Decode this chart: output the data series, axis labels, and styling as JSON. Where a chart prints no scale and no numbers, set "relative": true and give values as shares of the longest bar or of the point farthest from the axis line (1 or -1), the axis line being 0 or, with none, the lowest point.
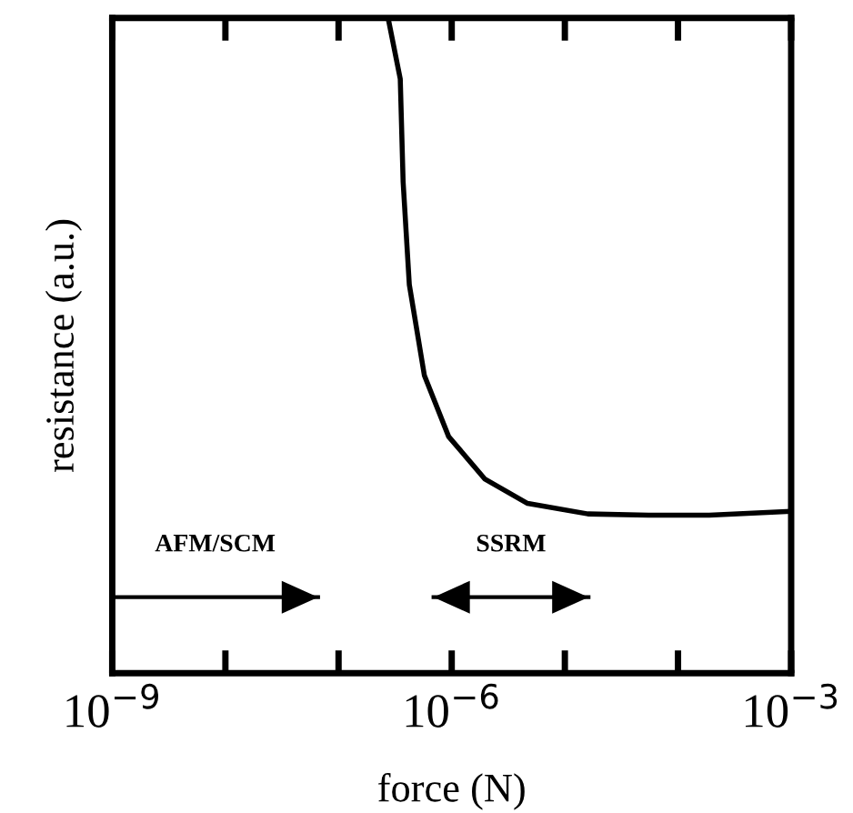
{
  "chart_data": {
    "type": "line",
    "relative": true,
    "xlabel": "force (N)",
    "ylabel": "resistance (a.u.)",
    "log": "x",
    "xlim": [
      1e-09,
      0.001
    ],
    "xticks": [
      {
        "value": 1e-09,
        "label": "10$^{−9}$"
      },
      {
        "value": 1e-08,
        "label": null
      },
      {
        "value": 1e-07,
        "label": null
      },
      {
        "value": 1e-06,
        "label": "10$^{−6}$"
      },
      {
        "value": 1e-05,
        "label": null
      },
      {
        "value": 0.0001,
        "label": null
      },
      {
        "value": 0.001,
        "label": "10$^{−3}$"
      }
    ],
    "tick_labels": "x",
    "grid": false,
    "legend": false,
    "marker": "none",
    "line_style": "solid",
    "series": [
      {
        "color": "#000000",
        "x": [
          2.74e-07,
          3.51e-07,
          3.72e-07,
          4.22e-07,
          5.74e-07,
          9.4e-07,
          1.97e-06,
          4.68e-06,
          1.6e-05,
          5.5e-05,
          0.000189,
          0.001
        ],
        "values": [
          1.0,
          0.907,
          0.75,
          0.593,
          0.454,
          0.361,
          0.296,
          0.259,
          0.243,
          0.241,
          0.241,
          0.247
        ]
      },
      {
        "name": "AFM/SCM",
        "color": "#000000",
        "x": [
          1e-09,
          6.6e-08
        ],
        "values": [
          0.116,
          0.116
        ]
      },
      {
        "name": "SSRM",
        "color": "#000000",
        "x": [
          6.9e-07,
          1.62e-05
        ],
        "values": [
          0.116,
          0.116
        ]
      }
    ]
  }
}
